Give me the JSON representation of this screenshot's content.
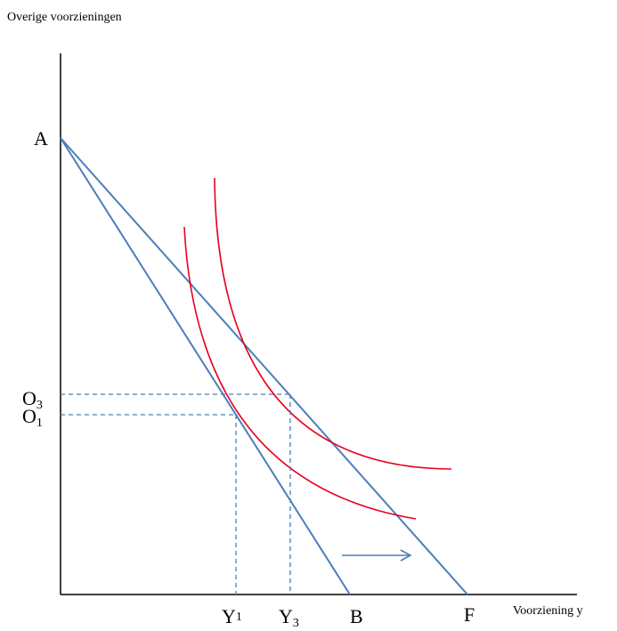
{
  "y_axis_title": "Overige voorzieningen",
  "x_axis_title": "Voorziening y",
  "labels": {
    "A": "A",
    "B": "B",
    "F": "F",
    "O3_main": "O",
    "O3_sub": "3",
    "O1_main": "O",
    "O1_sub": "1",
    "Y1_main": "Y",
    "Y1_sub": "1",
    "Y3_main": "Y",
    "Y3_sub": "3"
  },
  "colors": {
    "axes": "#000000",
    "budget_lines": "#4a7ebb",
    "indifference_curves": "#e8001c",
    "guides": "#4a7ebb",
    "arrow": "#4a7ebb"
  }
}
